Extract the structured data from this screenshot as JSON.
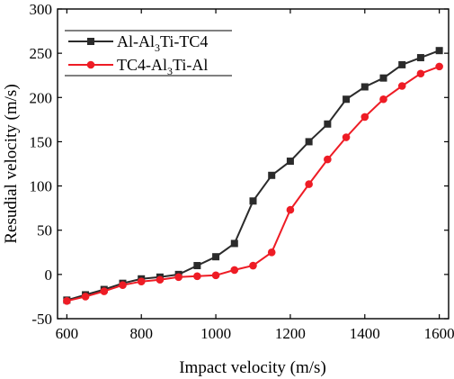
{
  "chart_data": {
    "type": "line",
    "xlabel": "Impact velocity (m/s)",
    "ylabel": "Resudial velocity (m/s)",
    "xlim": [
      575,
      1625
    ],
    "ylim": [
      -50,
      300
    ],
    "xticks": [
      600,
      800,
      1000,
      1200,
      1400,
      1600
    ],
    "yticks": [
      -50,
      0,
      50,
      100,
      150,
      200,
      250,
      300
    ],
    "x": [
      600,
      650,
      700,
      750,
      800,
      850,
      900,
      950,
      1000,
      1050,
      1100,
      1150,
      1200,
      1250,
      1300,
      1350,
      1400,
      1450,
      1500,
      1550,
      1600
    ],
    "series": [
      {
        "name": "Al-Al3Ti-TC4",
        "label_parts": [
          "Al-Al",
          "3",
          "Ti-TC4"
        ],
        "color": "#2b2b2b",
        "marker": "square",
        "values": [
          -29,
          -23,
          -17,
          -10,
          -5,
          -3,
          0,
          10,
          20,
          35,
          83,
          112,
          128,
          150,
          170,
          198,
          212,
          222,
          237,
          245,
          253
        ]
      },
      {
        "name": "TC4-Al3Ti-Al",
        "label_parts": [
          "TC4-Al",
          "3",
          "Ti-Al"
        ],
        "color": "#ee1c25",
        "marker": "circle",
        "values": [
          -30,
          -25,
          -19,
          -12,
          -8,
          -6,
          -3,
          -2,
          -1,
          5,
          10,
          25,
          73,
          102,
          130,
          155,
          178,
          198,
          213,
          227,
          235
        ]
      }
    ],
    "legend": "top-left",
    "grid": false
  }
}
